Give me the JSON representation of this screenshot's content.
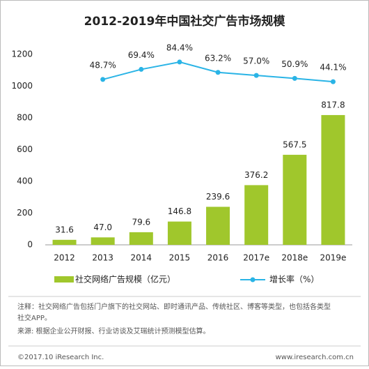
{
  "chart_data": {
    "type": "bar",
    "title": "2012-2019年中国社交广告市场规模",
    "categories": [
      "2012",
      "2013",
      "2014",
      "2015",
      "2016",
      "2017e",
      "2018e",
      "2019e"
    ],
    "ylim": [
      0,
      1200
    ],
    "yticks": [
      0,
      200,
      400,
      600,
      800,
      1000,
      1200
    ],
    "y2lim": [
      -290,
      100
    ],
    "legend": "bottom",
    "series": [
      {
        "name": "社交网络广告规模（亿元）",
        "color": "#a0c72c",
        "type": "bar",
        "values": [
          31.6,
          47.0,
          79.6,
          146.8,
          239.6,
          376.2,
          567.5,
          817.8
        ],
        "value_labels": [
          "31.6",
          "47.0",
          "79.6",
          "146.8",
          "239.6",
          "376.2",
          "567.5",
          "817.8"
        ]
      },
      {
        "name": "增长率（%）",
        "color": "#2ab4e6",
        "type": "line",
        "axis": "y2",
        "values": [
          null,
          48.7,
          69.4,
          84.4,
          63.2,
          57.0,
          50.9,
          44.1
        ],
        "value_labels": [
          null,
          "48.7%",
          "69.4%",
          "84.4%",
          "63.2%",
          "57.0%",
          "50.9%",
          "44.1%"
        ]
      }
    ],
    "notes": [
      "注释：社交网络广告包括门户旗下的社交网站、即时通讯产品、传统社区、博客等类型，也包括各类型",
      "社交APP。",
      "来源: 根据企业公开财报、行业访谈及艾瑞统计预测模型估算。"
    ],
    "footer_left": "©2017.10 iResearch Inc.",
    "footer_right": "www.iresearch.com.cn"
  }
}
